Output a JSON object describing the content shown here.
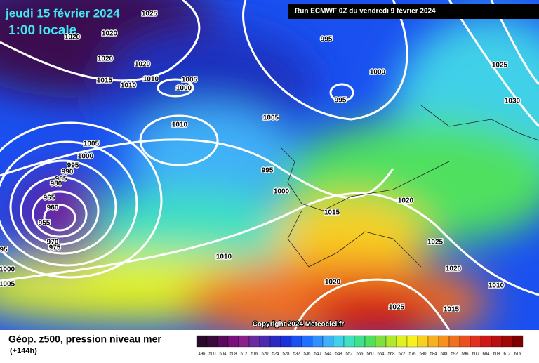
{
  "header": {
    "date": "jeudi 15 février 2024",
    "time": "1:00 locale",
    "run": "Run ECMWF 0Z du vendredi 9 février 2024"
  },
  "map": {
    "isobar_labels": [
      1025,
      1020,
      1020,
      1020,
      1020,
      1015,
      1010,
      1010,
      1005,
      1000,
      995,
      1000,
      995,
      1025,
      1030,
      1010,
      1005,
      1005,
      1000,
      995,
      990,
      985,
      980,
      965,
      960,
      955,
      970,
      975,
      995,
      1000,
      1015,
      1020,
      1025,
      1020,
      1010,
      1000,
      1005,
      1020,
      1010,
      1025,
      1015,
      95
    ]
  },
  "footer": {
    "copyright": "Copyright 2024 Meteociel.fr",
    "title": "Géop. z500, pression niveau mer",
    "lead": "(+144h)"
  },
  "legend": {
    "labels": [
      496,
      500,
      504,
      508,
      512,
      516,
      520,
      524,
      528,
      532,
      536,
      540,
      544,
      548,
      552,
      556,
      560,
      564,
      568,
      572,
      576,
      580,
      584,
      588,
      592,
      596,
      600,
      604,
      608,
      612,
      616
    ],
    "colors": [
      "#2a0a2a",
      "#3a0a3a",
      "#5a0a5a",
      "#7a107a",
      "#8a208a",
      "#6a2aa0",
      "#4a2ab0",
      "#2a2ac0",
      "#1a30d8",
      "#1a50f0",
      "#2070ff",
      "#3090ff",
      "#40b0f8",
      "#40d0e8",
      "#40e0c0",
      "#40e090",
      "#50e060",
      "#80e040",
      "#b0e830",
      "#e0f020",
      "#f8f020",
      "#f8d020",
      "#f8b020",
      "#f89020",
      "#f07020",
      "#e85020",
      "#e03020",
      "#d01818",
      "#b81010",
      "#a00808",
      "#800000"
    ]
  }
}
